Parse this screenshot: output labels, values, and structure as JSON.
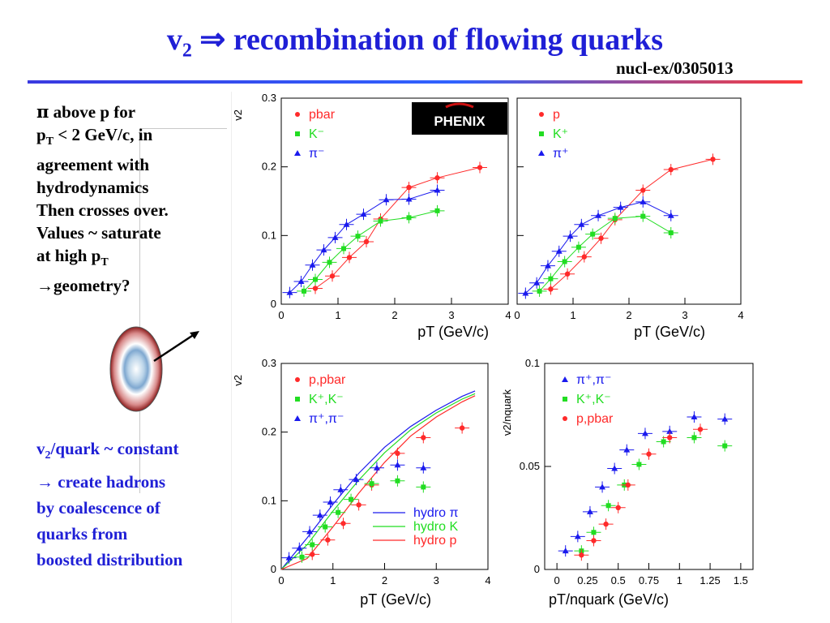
{
  "slide": {
    "title_main": "v",
    "title_sub": "2",
    "title_rest": " ⇒ recombination of flowing quarks",
    "reference": "nucl-ex/0305013",
    "notes_top": [
      "π above p for",
      "p_T < 2 GeV/c, in",
      "agreement with",
      "hydrodynamics",
      "Then crosses over.",
      "Values ~ saturate",
      "at high p_T",
      "→geometry?"
    ],
    "notes_bottom": [
      "v2/quark ~ constant",
      "→  create hadrons",
      "by coalescence of",
      "quarks from",
      "boosted distribution"
    ],
    "logo_text": "PHENIX"
  },
  "colors": {
    "red": "#ff2a2a",
    "green": "#22dd22",
    "blue": "#1a1aee",
    "title": "#1f1fd6"
  },
  "chart_data": [
    {
      "type": "scatter",
      "panel": "top-left",
      "xlabel": "p_T (GeV/c)",
      "ylabel": "v_2",
      "xlim": [
        0,
        4
      ],
      "ylim": [
        0,
        0.3
      ],
      "xticks": [
        "0",
        "1",
        "2",
        "3",
        "4"
      ],
      "yticks": [
        "0",
        "0.1",
        "0.2",
        "0.3"
      ],
      "legend": [
        "pbar",
        "K⁻",
        "π⁻"
      ],
      "series": [
        {
          "name": "pbar",
          "color": "red",
          "marker": "circle",
          "x": [
            0.6,
            0.9,
            1.2,
            1.5,
            1.75,
            2.25,
            2.75,
            3.5
          ],
          "y": [
            0.023,
            0.041,
            0.068,
            0.091,
            0.124,
            0.17,
            0.184,
            0.199
          ]
        },
        {
          "name": "K⁻",
          "color": "green",
          "marker": "square",
          "x": [
            0.4,
            0.6,
            0.85,
            1.1,
            1.35,
            1.75,
            2.25,
            2.75
          ],
          "y": [
            0.019,
            0.036,
            0.061,
            0.081,
            0.099,
            0.121,
            0.126,
            0.136
          ]
        },
        {
          "name": "π⁻",
          "color": "blue",
          "marker": "triangle",
          "x": [
            0.15,
            0.35,
            0.55,
            0.75,
            0.95,
            1.15,
            1.45,
            1.85,
            2.25,
            2.75
          ],
          "y": [
            0.017,
            0.033,
            0.057,
            0.079,
            0.097,
            0.116,
            0.131,
            0.152,
            0.153,
            0.166
          ]
        }
      ]
    },
    {
      "type": "scatter",
      "panel": "top-right",
      "xlabel": "p_T (GeV/c)",
      "ylabel": "",
      "xlim": [
        0,
        4
      ],
      "ylim": [
        0,
        0.3
      ],
      "xticks": [
        "0",
        "1",
        "2",
        "3",
        "4"
      ],
      "yticks": [],
      "legend": [
        "p",
        "K⁺",
        "π⁺"
      ],
      "series": [
        {
          "name": "p",
          "color": "red",
          "marker": "circle",
          "x": [
            0.6,
            0.9,
            1.2,
            1.5,
            1.75,
            2.25,
            2.75,
            3.5
          ],
          "y": [
            0.022,
            0.044,
            0.069,
            0.096,
            0.123,
            0.166,
            0.196,
            0.211
          ]
        },
        {
          "name": "K⁺",
          "color": "green",
          "marker": "square",
          "x": [
            0.4,
            0.6,
            0.85,
            1.1,
            1.35,
            1.75,
            2.25,
            2.75
          ],
          "y": [
            0.019,
            0.037,
            0.062,
            0.083,
            0.102,
            0.125,
            0.128,
            0.104
          ]
        },
        {
          "name": "π⁺",
          "color": "blue",
          "marker": "triangle",
          "x": [
            0.15,
            0.35,
            0.55,
            0.75,
            0.95,
            1.15,
            1.45,
            1.85,
            2.25,
            2.75
          ],
          "y": [
            0.016,
            0.031,
            0.056,
            0.077,
            0.099,
            0.116,
            0.129,
            0.141,
            0.149,
            0.129
          ]
        }
      ]
    },
    {
      "type": "scatter",
      "panel": "bottom-left",
      "xlabel": "p_T (GeV/c)",
      "ylabel": "v_2",
      "xlim": [
        0,
        4
      ],
      "ylim": [
        0,
        0.3
      ],
      "xticks": [
        "0",
        "1",
        "2",
        "3",
        "4"
      ],
      "yticks": [
        "0",
        "0.1",
        "0.2",
        "0.3"
      ],
      "legend": [
        "p,pbar",
        "K⁺,K⁻",
        "π⁺,π⁻"
      ],
      "lines_legend": [
        "hydro π",
        "hydro K",
        "hydro p"
      ],
      "series": [
        {
          "name": "p,pbar",
          "color": "red",
          "marker": "circle",
          "x": [
            0.6,
            0.9,
            1.2,
            1.5,
            1.75,
            2.25,
            2.75,
            3.5
          ],
          "y": [
            0.022,
            0.043,
            0.067,
            0.094,
            0.123,
            0.169,
            0.192,
            0.206
          ]
        },
        {
          "name": "K⁺,K⁻",
          "color": "green",
          "marker": "square",
          "x": [
            0.4,
            0.6,
            0.85,
            1.1,
            1.35,
            1.75,
            2.25,
            2.75
          ],
          "y": [
            0.018,
            0.036,
            0.062,
            0.083,
            0.102,
            0.125,
            0.129,
            0.12
          ]
        },
        {
          "name": "π⁺,π⁻",
          "color": "blue",
          "marker": "triangle",
          "x": [
            0.15,
            0.35,
            0.55,
            0.75,
            0.95,
            1.15,
            1.45,
            1.85,
            2.25,
            2.75
          ],
          "y": [
            0.017,
            0.031,
            0.055,
            0.079,
            0.098,
            0.116,
            0.131,
            0.148,
            0.152,
            0.148
          ]
        }
      ],
      "hydro": [
        {
          "name": "hydro π",
          "color": "blue",
          "x": [
            0.0,
            0.5,
            1.0,
            1.5,
            2.0,
            2.5,
            3.0,
            3.5,
            3.75
          ],
          "y": [
            0.0,
            0.046,
            0.095,
            0.14,
            0.178,
            0.208,
            0.232,
            0.252,
            0.26
          ]
        },
        {
          "name": "hydro K",
          "color": "green",
          "x": [
            0.0,
            0.5,
            1.0,
            1.5,
            2.0,
            2.5,
            3.0,
            3.5,
            3.75
          ],
          "y": [
            0.0,
            0.036,
            0.085,
            0.13,
            0.17,
            0.203,
            0.228,
            0.248,
            0.256
          ]
        },
        {
          "name": "hydro p",
          "color": "red",
          "x": [
            0.0,
            0.5,
            1.0,
            1.5,
            2.0,
            2.5,
            3.0,
            3.5,
            3.75
          ],
          "y": [
            0.0,
            0.016,
            0.062,
            0.111,
            0.156,
            0.194,
            0.222,
            0.244,
            0.253
          ]
        }
      ]
    },
    {
      "type": "scatter",
      "panel": "bottom-right",
      "xlabel": "p_T/n_quark (GeV/c)",
      "ylabel": "v_2/n_quark",
      "xlim": [
        -0.1,
        1.6
      ],
      "ylim": [
        0,
        0.1
      ],
      "xticks": [
        "0",
        "0.25",
        "0.5",
        "0.75",
        "1",
        "1.25",
        "1.5"
      ],
      "yticks": [
        "0",
        "0.05",
        "0.1"
      ],
      "legend": [
        "π⁺,π⁻",
        "K⁺,K⁻",
        "p,pbar"
      ],
      "series": [
        {
          "name": "π⁺,π⁻",
          "color": "blue",
          "marker": "triangle",
          "x": [
            0.07,
            0.17,
            0.27,
            0.37,
            0.47,
            0.57,
            0.72,
            0.92,
            1.12,
            1.37
          ],
          "y": [
            0.009,
            0.016,
            0.028,
            0.04,
            0.049,
            0.058,
            0.066,
            0.067,
            0.074,
            0.073
          ]
        },
        {
          "name": "K⁺,K⁻",
          "color": "green",
          "marker": "square",
          "x": [
            0.2,
            0.3,
            0.42,
            0.55,
            0.67,
            0.87,
            1.12,
            1.37
          ],
          "y": [
            0.009,
            0.018,
            0.031,
            0.041,
            0.051,
            0.062,
            0.064,
            0.06
          ]
        },
        {
          "name": "p,pbar",
          "color": "red",
          "marker": "circle",
          "x": [
            0.2,
            0.3,
            0.4,
            0.5,
            0.58,
            0.75,
            0.92,
            1.17
          ],
          "y": [
            0.007,
            0.014,
            0.022,
            0.03,
            0.041,
            0.056,
            0.064,
            0.068
          ]
        }
      ]
    }
  ]
}
